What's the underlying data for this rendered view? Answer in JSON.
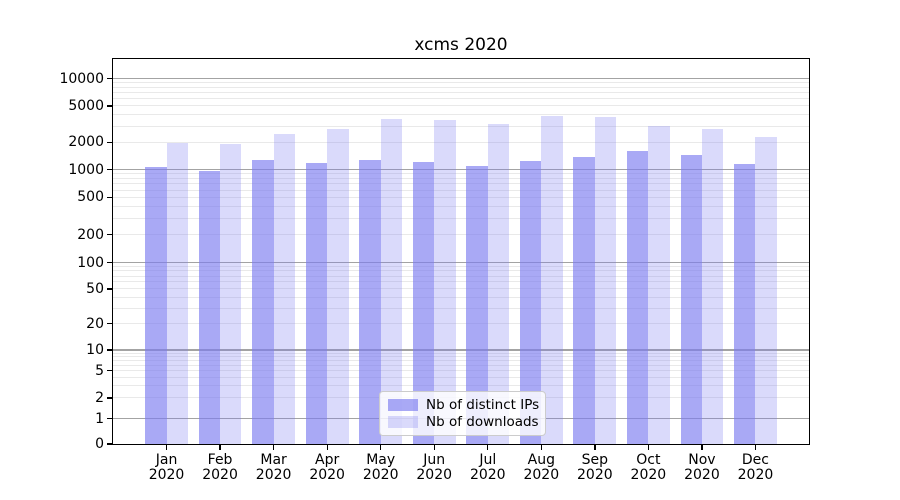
{
  "chart_data": {
    "type": "bar",
    "title": "xcms 2020",
    "categories": [
      "Jan",
      "Feb",
      "Mar",
      "Apr",
      "May",
      "Jun",
      "Jul",
      "Aug",
      "Sep",
      "Oct",
      "Nov",
      "Dec"
    ],
    "x_tick_year": "2020",
    "series": [
      {
        "name": "Nb of distinct IPs",
        "color": "rgba(123,123,240,0.65)",
        "values": [
          1060,
          975,
          1265,
          1165,
          1265,
          1210,
          1090,
          1235,
          1375,
          1590,
          1435,
          1145
        ]
      },
      {
        "name": "Nb of downloads",
        "color": "rgba(123,123,240,0.28)",
        "values": [
          1980,
          1930,
          2460,
          2770,
          3570,
          3460,
          3170,
          3880,
          3730,
          3010,
          2795,
          2250
        ]
      }
    ],
    "y_ticks": [
      0,
      1,
      2,
      5,
      10,
      20,
      50,
      100,
      200,
      500,
      1000,
      2000,
      5000,
      10000
    ],
    "y_scale": "symlog",
    "ylim": [
      0,
      16000
    ],
    "xlabel": "",
    "ylabel": "",
    "grid": {
      "major_lines_at": [
        1,
        10,
        100,
        1000,
        10000
      ],
      "major_color": "#a3a3a3",
      "minor_color": "#e9e9e9"
    },
    "legend": {
      "position": "lower center"
    }
  }
}
